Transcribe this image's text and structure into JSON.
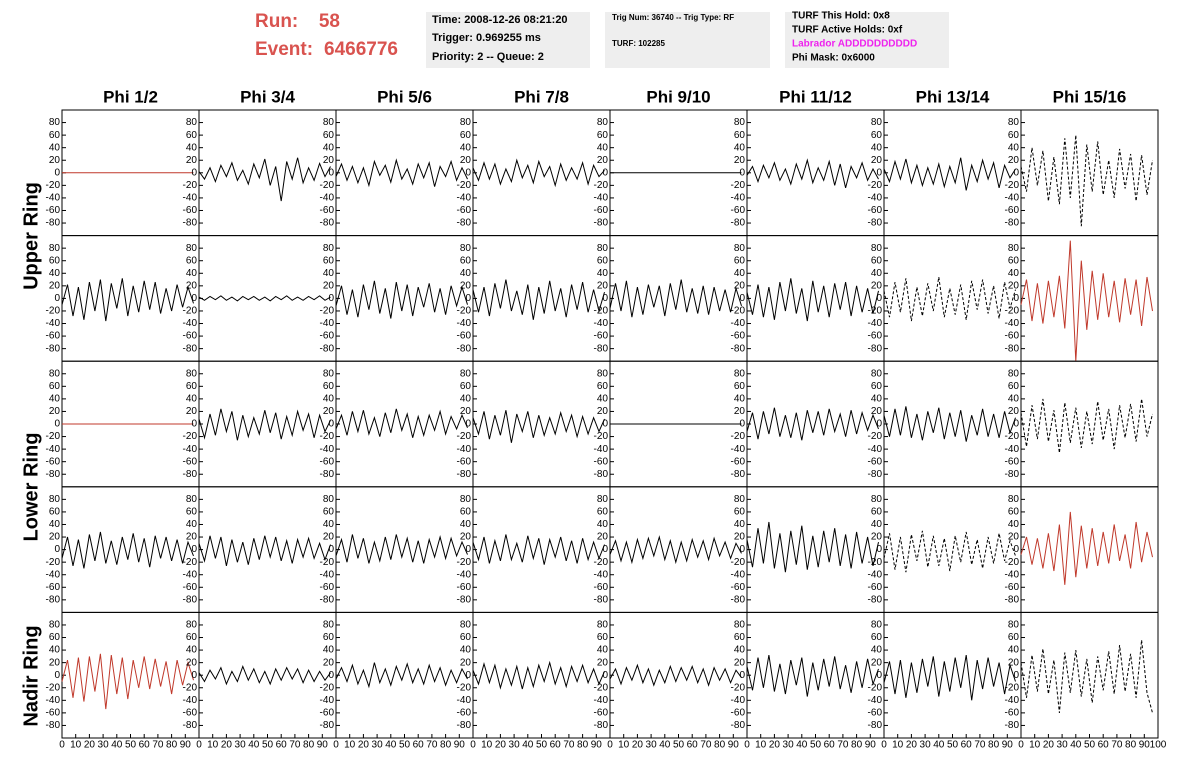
{
  "header": {
    "run_label": "Run:",
    "run": "58",
    "event_label": "Event:",
    "event": "6466776"
  },
  "info": [
    [
      "Time: 2008-12-26 08:21:20",
      "Trigger: 0.969255 ms",
      "Priority: 2 -- Queue: 2"
    ],
    [
      "Trig Num: 36740 -- Trig Type: RF",
      "TURF: 102285"
    ],
    [
      "TURF This Hold: 0x8",
      "TURF Active Holds: 0xf",
      "Labrador ADDDDDDDDDD",
      "Phi Mask: 0x6000"
    ]
  ],
  "columns": [
    "Phi 1/2",
    "Phi 3/4",
    "Phi 5/6",
    "Phi 7/8",
    "Phi 9/10",
    "Phi 11/12",
    "Phi 13/14",
    "Phi 15/16"
  ],
  "rows": [
    "Upper Ring",
    "Lower Ring",
    "Nadir Ring"
  ],
  "axes": {
    "xlim": [
      0,
      100
    ],
    "ylim": [
      -100,
      100
    ],
    "xticks": [
      0,
      10,
      20,
      30,
      40,
      50,
      60,
      70,
      80,
      90,
      100
    ],
    "yticks": [
      -80,
      -60,
      -40,
      -20,
      0,
      20,
      40,
      60,
      80
    ],
    "x": [
      0,
      4,
      8,
      12,
      16,
      20,
      24,
      28,
      32,
      36,
      40,
      44,
      48,
      52,
      56,
      60,
      64,
      68,
      72,
      76,
      80,
      84,
      88,
      92,
      96
    ]
  },
  "chart_data": [
    {
      "type": "line",
      "color": "#c0392b",
      "dashed": false,
      "values": [
        0,
        0,
        0,
        0,
        0,
        0,
        0,
        0,
        0,
        0,
        0,
        0,
        0,
        0,
        0,
        0,
        0,
        0,
        0,
        0,
        0,
        0,
        0,
        0,
        0
      ]
    },
    {
      "type": "line",
      "color": "#000000",
      "dashed": false,
      "values": [
        2,
        -10,
        8,
        -14,
        12,
        -6,
        16,
        -12,
        4,
        -18,
        14,
        -8,
        22,
        -20,
        10,
        -45,
        18,
        -10,
        24,
        -16,
        8,
        -12,
        15,
        -6,
        10
      ]
    },
    {
      "type": "line",
      "color": "#000000",
      "dashed": false,
      "values": [
        -6,
        14,
        -12,
        10,
        -16,
        8,
        -20,
        18,
        -4,
        12,
        -15,
        20,
        -10,
        6,
        -18,
        14,
        -8,
        16,
        -22,
        10,
        -6,
        18,
        -12,
        8,
        -10
      ]
    },
    {
      "type": "line",
      "color": "#000000",
      "dashed": false,
      "values": [
        8,
        -12,
        16,
        -10,
        14,
        -18,
        6,
        -14,
        20,
        -8,
        12,
        -16,
        18,
        -6,
        10,
        -20,
        14,
        -12,
        8,
        -10,
        16,
        -18,
        12,
        -6,
        4
      ]
    },
    {
      "type": "line",
      "color": "#000000",
      "dashed": false,
      "values": [
        0,
        0,
        0,
        0,
        0,
        0,
        0,
        0,
        0,
        0,
        0,
        0,
        0,
        0,
        0,
        0,
        0,
        0,
        0,
        0,
        0,
        0,
        0,
        0,
        0
      ]
    },
    {
      "type": "line",
      "color": "#000000",
      "dashed": false,
      "values": [
        -4,
        10,
        -14,
        12,
        -8,
        16,
        -12,
        6,
        -18,
        14,
        -10,
        20,
        -16,
        8,
        -12,
        18,
        -20,
        14,
        -24,
        10,
        -8,
        16,
        -12,
        6,
        -10
      ]
    },
    {
      "type": "line",
      "color": "#000000",
      "dashed": false,
      "values": [
        6,
        -14,
        18,
        -10,
        22,
        -16,
        12,
        -20,
        8,
        -18,
        14,
        -22,
        10,
        -16,
        24,
        -28,
        12,
        -14,
        20,
        -10,
        16,
        -24,
        12,
        -8,
        6
      ]
    },
    {
      "type": "line",
      "color": "#000000",
      "dashed": true,
      "values": [
        10,
        -30,
        40,
        -20,
        35,
        -45,
        25,
        -50,
        55,
        -40,
        60,
        -85,
        45,
        -30,
        50,
        -35,
        20,
        -40,
        38,
        -25,
        30,
        -45,
        28,
        -35,
        20
      ]
    },
    {
      "type": "line",
      "color": "#000000",
      "dashed": false,
      "values": [
        -10,
        22,
        -28,
        18,
        -34,
        26,
        -20,
        30,
        -36,
        24,
        -16,
        32,
        -28,
        20,
        -22,
        28,
        -18,
        26,
        -24,
        16,
        -20,
        22,
        -14,
        18,
        -8
      ]
    },
    {
      "type": "line",
      "color": "#000000",
      "dashed": false,
      "values": [
        2,
        -3,
        3,
        -2,
        4,
        -3,
        2,
        -4,
        3,
        -2,
        3,
        -3,
        2,
        -4,
        3,
        -2,
        4,
        -3,
        2,
        -3,
        3,
        -2,
        4,
        -3,
        2
      ]
    },
    {
      "type": "line",
      "color": "#000000",
      "dashed": false,
      "values": [
        -12,
        20,
        -26,
        14,
        -30,
        22,
        -18,
        28,
        -24,
        16,
        -32,
        26,
        -20,
        22,
        -28,
        18,
        -14,
        24,
        -22,
        16,
        -26,
        20,
        -12,
        18,
        -10
      ]
    },
    {
      "type": "line",
      "color": "#000000",
      "dashed": false,
      "values": [
        14,
        -22,
        18,
        -28,
        24,
        -16,
        30,
        -20,
        12,
        -26,
        22,
        -34,
        18,
        -24,
        28,
        -20,
        16,
        -30,
        22,
        -18,
        26,
        -22,
        14,
        -20,
        10
      ]
    },
    {
      "type": "line",
      "color": "#000000",
      "dashed": false,
      "values": [
        -16,
        24,
        -20,
        28,
        -30,
        18,
        -26,
        22,
        -14,
        20,
        -28,
        24,
        -18,
        30,
        -22,
        16,
        -24,
        20,
        -26,
        18,
        -20,
        14,
        -22,
        16,
        -12
      ]
    },
    {
      "type": "line",
      "color": "#000000",
      "dashed": false,
      "values": [
        10,
        -26,
        22,
        -30,
        18,
        -34,
        26,
        -20,
        32,
        -24,
        16,
        -36,
        28,
        -22,
        20,
        -30,
        24,
        -18,
        26,
        -28,
        20,
        -22,
        16,
        -24,
        12
      ]
    },
    {
      "type": "line",
      "color": "#000000",
      "dashed": true,
      "values": [
        12,
        -30,
        26,
        -22,
        32,
        -36,
        18,
        -28,
        24,
        -20,
        34,
        -30,
        16,
        -26,
        22,
        -34,
        28,
        -18,
        30,
        -24,
        20,
        -32,
        26,
        -16,
        14
      ]
    },
    {
      "type": "line",
      "color": "#c0392b",
      "dashed": false,
      "values": [
        -10,
        30,
        -36,
        24,
        -40,
        28,
        -30,
        36,
        -48,
        92,
        -100,
        60,
        -50,
        44,
        -34,
        40,
        -30,
        28,
        -38,
        32,
        -26,
        30,
        -44,
        34,
        -20
      ]
    },
    {
      "type": "line",
      "color": "#c0392b",
      "dashed": false,
      "values": [
        0,
        0,
        0,
        0,
        0,
        0,
        0,
        0,
        0,
        0,
        0,
        0,
        0,
        0,
        0,
        0,
        0,
        0,
        0,
        0,
        0,
        0,
        0,
        0,
        0
      ]
    },
    {
      "type": "line",
      "color": "#000000",
      "dashed": false,
      "values": [
        8,
        -22,
        16,
        -18,
        24,
        -12,
        20,
        -26,
        14,
        -20,
        10,
        -16,
        22,
        -14,
        18,
        -24,
        12,
        -18,
        20,
        -10,
        16,
        -22,
        14,
        -12,
        6
      ]
    },
    {
      "type": "line",
      "color": "#000000",
      "dashed": false,
      "values": [
        -8,
        14,
        -18,
        20,
        -12,
        22,
        -16,
        10,
        -20,
        18,
        -14,
        24,
        -10,
        16,
        -22,
        12,
        -18,
        14,
        -10,
        20,
        -16,
        12,
        -8,
        14,
        -6
      ]
    },
    {
      "type": "line",
      "color": "#000000",
      "dashed": false,
      "values": [
        10,
        -16,
        20,
        -24,
        14,
        -18,
        22,
        -30,
        16,
        -12,
        20,
        -22,
        14,
        -18,
        10,
        -16,
        18,
        -12,
        14,
        -20,
        12,
        -16,
        10,
        -12,
        8
      ]
    },
    {
      "type": "line",
      "color": "#000000",
      "dashed": false,
      "values": [
        0,
        0,
        0,
        0,
        0,
        0,
        0,
        0,
        0,
        0,
        0,
        0,
        0,
        0,
        0,
        0,
        0,
        0,
        0,
        0,
        0,
        0,
        0,
        0,
        0
      ]
    },
    {
      "type": "line",
      "color": "#000000",
      "dashed": false,
      "values": [
        -12,
        18,
        -24,
        20,
        -16,
        26,
        -20,
        14,
        -22,
        18,
        -26,
        22,
        -14,
        20,
        -18,
        24,
        -12,
        16,
        -20,
        22,
        -16,
        18,
        -10,
        14,
        -8
      ]
    },
    {
      "type": "line",
      "color": "#000000",
      "dashed": false,
      "values": [
        14,
        -20,
        24,
        -18,
        28,
        -22,
        16,
        -26,
        20,
        -14,
        26,
        -24,
        18,
        -20,
        22,
        -28,
        14,
        -18,
        24,
        -20,
        16,
        -22,
        20,
        -14,
        10
      ]
    },
    {
      "type": "line",
      "color": "#000000",
      "dashed": true,
      "values": [
        18,
        -36,
        30,
        -24,
        40,
        -28,
        22,
        -46,
        34,
        -30,
        26,
        -38,
        20,
        -32,
        36,
        -26,
        24,
        -40,
        30,
        -22,
        32,
        -28,
        40,
        -20,
        16
      ]
    },
    {
      "type": "line",
      "color": "#000000",
      "dashed": false,
      "values": [
        -14,
        20,
        -26,
        16,
        -30,
        24,
        -18,
        28,
        -22,
        14,
        -24,
        20,
        -16,
        26,
        -20,
        18,
        -28,
        22,
        -14,
        20,
        -18,
        16,
        -22,
        12,
        -10
      ]
    },
    {
      "type": "line",
      "color": "#000000",
      "dashed": false,
      "values": [
        10,
        -18,
        22,
        -14,
        20,
        -26,
        16,
        -20,
        12,
        -24,
        18,
        -16,
        22,
        -12,
        20,
        -18,
        14,
        -22,
        16,
        -12,
        18,
        -14,
        10,
        -16,
        8
      ]
    },
    {
      "type": "line",
      "color": "#000000",
      "dashed": false,
      "values": [
        -10,
        16,
        -20,
        24,
        -14,
        18,
        -22,
        12,
        -18,
        20,
        -16,
        24,
        -12,
        18,
        -20,
        14,
        -22,
        16,
        -12,
        20,
        -14,
        18,
        -10,
        12,
        -8
      ]
    },
    {
      "type": "line",
      "color": "#000000",
      "dashed": false,
      "values": [
        12,
        -16,
        20,
        -22,
        14,
        -18,
        24,
        -16,
        10,
        -20,
        22,
        -14,
        18,
        -24,
        16,
        -12,
        20,
        -18,
        14,
        -22,
        18,
        -16,
        12,
        -14,
        8
      ]
    },
    {
      "type": "line",
      "color": "#000000",
      "dashed": false,
      "values": [
        -8,
        14,
        -18,
        12,
        -20,
        16,
        -14,
        18,
        -10,
        20,
        -16,
        14,
        -20,
        12,
        -18,
        16,
        -12,
        14,
        -16,
        18,
        -10,
        12,
        -14,
        10,
        -6
      ]
    },
    {
      "type": "line",
      "color": "#000000",
      "dashed": false,
      "values": [
        16,
        -28,
        34,
        -22,
        44,
        -30,
        26,
        -36,
        30,
        -24,
        38,
        -32,
        22,
        -28,
        30,
        -20,
        34,
        -26,
        24,
        -30,
        28,
        -22,
        20,
        -26,
        12
      ]
    },
    {
      "type": "line",
      "color": "#000000",
      "dashed": true,
      "values": [
        -14,
        26,
        -32,
        20,
        -36,
        24,
        -18,
        30,
        -28,
        22,
        -26,
        18,
        -34,
        22,
        -20,
        28,
        -24,
        16,
        -30,
        20,
        -22,
        26,
        -18,
        14,
        -10
      ]
    },
    {
      "type": "line",
      "color": "#c0392b",
      "dashed": false,
      "values": [
        -8,
        20,
        -24,
        18,
        -30,
        26,
        -34,
        40,
        -56,
        60,
        -44,
        38,
        -30,
        34,
        -26,
        28,
        -22,
        40,
        -18,
        24,
        -30,
        44,
        -20,
        28,
        -12
      ]
    },
    {
      "type": "line",
      "color": "#c0392b",
      "dashed": false,
      "values": [
        -10,
        24,
        -36,
        28,
        -42,
        30,
        -26,
        34,
        -54,
        32,
        -30,
        28,
        -38,
        24,
        -20,
        30,
        -22,
        26,
        -18,
        22,
        -30,
        24,
        -16,
        20,
        -8
      ]
    },
    {
      "type": "line",
      "color": "#000000",
      "dashed": false,
      "values": [
        4,
        -10,
        8,
        -6,
        12,
        -14,
        6,
        -10,
        14,
        -8,
        10,
        -12,
        6,
        -14,
        10,
        -8,
        12,
        -6,
        10,
        -12,
        8,
        -10,
        6,
        -8,
        4
      ]
    },
    {
      "type": "line",
      "color": "#000000",
      "dashed": false,
      "values": [
        -6,
        12,
        -10,
        16,
        -14,
        8,
        -18,
        20,
        -12,
        10,
        -16,
        14,
        -8,
        18,
        -12,
        10,
        -14,
        16,
        -10,
        12,
        -16,
        8,
        -12,
        10,
        -6
      ]
    },
    {
      "type": "line",
      "color": "#000000",
      "dashed": false,
      "values": [
        8,
        -14,
        18,
        -12,
        16,
        -20,
        10,
        -16,
        14,
        -22,
        12,
        -18,
        16,
        -10,
        20,
        -14,
        12,
        -18,
        14,
        -10,
        16,
        -12,
        10,
        -14,
        6
      ]
    },
    {
      "type": "line",
      "color": "#000000",
      "dashed": false,
      "values": [
        -6,
        10,
        -14,
        12,
        -8,
        16,
        -12,
        10,
        -16,
        8,
        -12,
        14,
        -10,
        12,
        -8,
        14,
        -12,
        10,
        -16,
        12,
        -8,
        10,
        -12,
        8,
        -4
      ]
    },
    {
      "type": "line",
      "color": "#000000",
      "dashed": false,
      "values": [
        14,
        -24,
        28,
        -20,
        32,
        -26,
        18,
        -30,
        24,
        -16,
        28,
        -34,
        20,
        -24,
        26,
        -18,
        30,
        -22,
        16,
        -28,
        22,
        -20,
        26,
        -14,
        10
      ]
    },
    {
      "type": "line",
      "color": "#000000",
      "dashed": false,
      "values": [
        -12,
        22,
        -30,
        24,
        -36,
        20,
        -28,
        26,
        -18,
        30,
        -34,
        22,
        -26,
        28,
        -20,
        32,
        -40,
        24,
        -22,
        28,
        -18,
        20,
        -30,
        16,
        -10
      ]
    },
    {
      "type": "line",
      "color": "#000000",
      "dashed": true,
      "values": [
        20,
        -36,
        32,
        -26,
        42,
        -30,
        24,
        -60,
        36,
        -28,
        40,
        -34,
        26,
        -44,
        30,
        -24,
        38,
        -30,
        48,
        -26,
        34,
        -36,
        56,
        -28,
        -60
      ]
    }
  ]
}
